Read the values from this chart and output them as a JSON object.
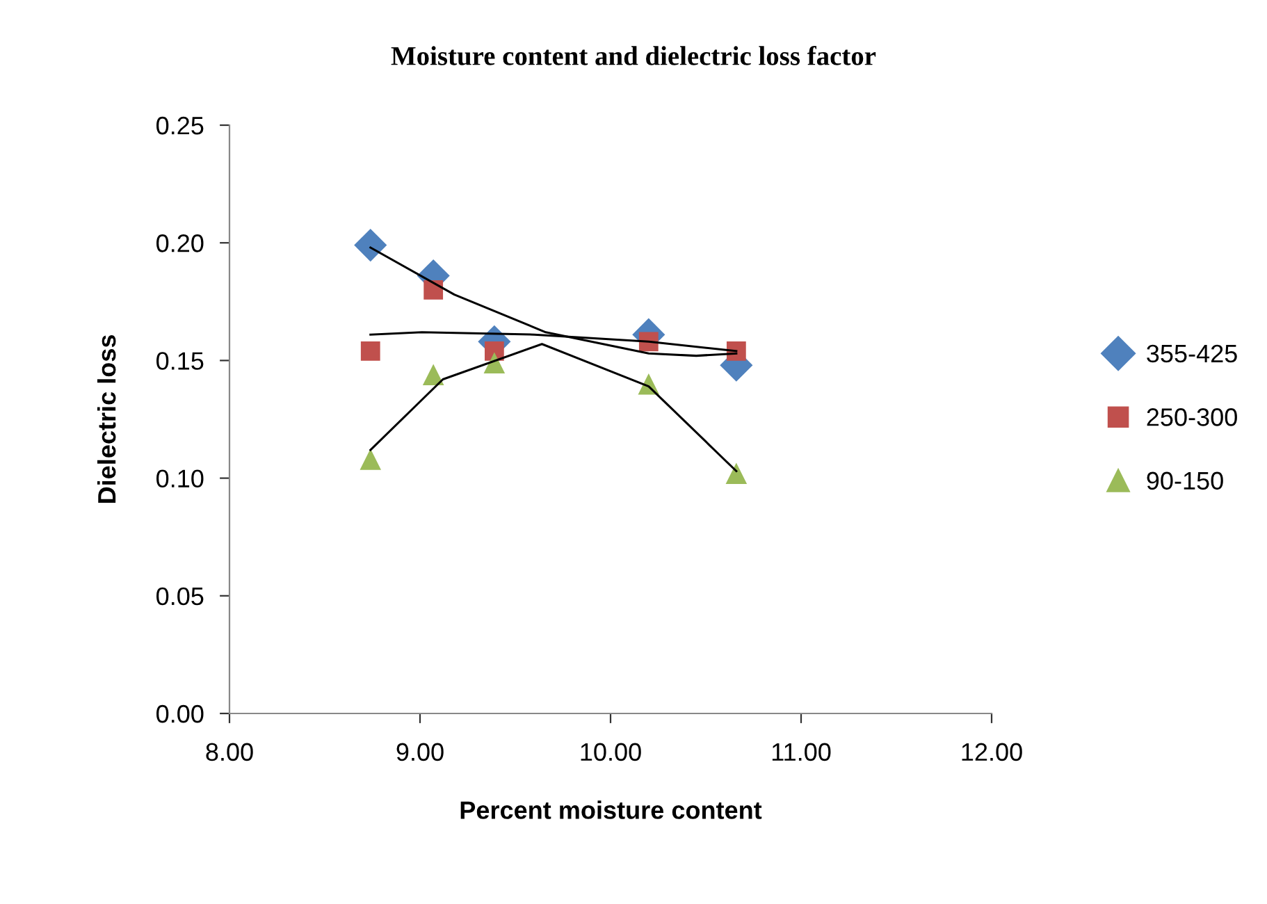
{
  "chart_data": {
    "type": "scatter",
    "title": "Moisture content and dielectric loss factor",
    "xlabel": "Percent moisture content",
    "ylabel": "Dielectric loss",
    "xlim": [
      8,
      12
    ],
    "xticks": [
      {
        "value": 8,
        "label": "8.00"
      },
      {
        "value": 9,
        "label": "9.00"
      },
      {
        "value": 10,
        "label": "10.00"
      },
      {
        "value": 11,
        "label": "11.00"
      },
      {
        "value": 12,
        "label": "12.00"
      }
    ],
    "ylim": [
      0,
      0.25
    ],
    "yticks": [
      {
        "value": 0,
        "label": "0.00"
      },
      {
        "value": 0.05,
        "label": "0.05"
      },
      {
        "value": 0.1,
        "label": "0.10"
      },
      {
        "value": 0.15,
        "label": "0.15"
      },
      {
        "value": 0.2,
        "label": "0.20"
      },
      {
        "value": 0.25,
        "label": "0.25"
      }
    ],
    "grid": false,
    "legend": "right",
    "x": [
      8.74,
      9.07,
      9.39,
      10.2,
      10.66
    ],
    "series": [
      {
        "name": "355-425",
        "color": "#4f81bd",
        "marker": "diamond",
        "values": [
          0.199,
          0.186,
          0.158,
          0.161,
          0.148
        ]
      },
      {
        "name": "250-300",
        "color": "#c0504d",
        "marker": "square",
        "values": [
          0.154,
          0.18,
          0.154,
          0.158,
          0.154
        ]
      },
      {
        "name": "90-150",
        "color": "#9bbb59",
        "marker": "triangle",
        "values": [
          0.108,
          0.144,
          0.149,
          0.14,
          0.102
        ]
      },
      {
        "type": "line",
        "color": "#000000",
        "x": [
          8.74,
          9.18,
          9.66,
          10.2,
          10.45,
          10.66
        ],
        "values": [
          0.198,
          0.178,
          0.162,
          0.153,
          0.152,
          0.153
        ]
      },
      {
        "type": "line",
        "color": "#000000",
        "x": [
          8.74,
          9.01,
          9.6,
          10.2,
          10.66
        ],
        "values": [
          0.161,
          0.162,
          0.161,
          0.158,
          0.154
        ]
      },
      {
        "type": "line",
        "color": "#000000",
        "x": [
          8.74,
          9.12,
          9.64,
          10.2,
          10.66
        ],
        "values": [
          0.112,
          0.142,
          0.157,
          0.139,
          0.103
        ]
      }
    ]
  }
}
